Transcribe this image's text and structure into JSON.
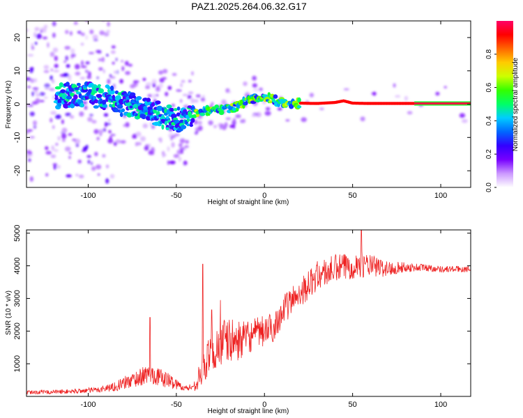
{
  "title": "PAZ1.2025.264.06.32.G17",
  "colors": {
    "snr_line": "#ee2222",
    "axis": "#000000",
    "colorbar": [
      "#ffffff",
      "#cc99ff",
      "#7700ff",
      "#3300ff",
      "#0066ff",
      "#00ccff",
      "#00ff66",
      "#33ff00",
      "#ccff00",
      "#ffcc00",
      "#ff6600",
      "#ff0000",
      "#ff0066"
    ]
  },
  "chart_data": [
    {
      "type": "heatmap",
      "name": "spectrogram",
      "xlabel": "Height of straight line (km)",
      "ylabel": "Frequency (Hz)",
      "xlim": [
        -135,
        117
      ],
      "ylim": [
        -25,
        25
      ],
      "xticks": [
        -100,
        -50,
        0,
        50,
        100
      ],
      "yticks": [
        20,
        10,
        0,
        -10,
        -20
      ],
      "xtick_labels": [
        "-100",
        "-50",
        "0",
        "50",
        "100"
      ],
      "ytick_labels": [
        "20",
        "10",
        "0",
        "-10",
        "-20"
      ],
      "ridge": {
        "x": [
          -115,
          -100,
          -90,
          -80,
          -70,
          -60,
          -50,
          -40,
          -30,
          -20,
          -10,
          -5,
          0,
          5,
          10,
          20,
          30,
          40,
          45,
          50,
          60,
          85,
          117
        ],
        "y": [
          2.5,
          3,
          2,
          0,
          -1,
          -3,
          -5,
          -3,
          -2,
          -1.5,
          1,
          2,
          2,
          1.5,
          0.5,
          0.3,
          0.2,
          0.5,
          1,
          0.3,
          0.2,
          0.2,
          0.2
        ]
      },
      "colorbar": {
        "label": "Normalized spectral amplitude",
        "range": [
          0,
          1
        ],
        "ticks": [
          0.0,
          0.2,
          0.4,
          0.6,
          0.8
        ],
        "tick_labels": [
          "0.0",
          "0.2",
          "0.4",
          "0.6",
          "0.8"
        ]
      }
    },
    {
      "type": "line",
      "name": "snr",
      "xlabel": "Height of straight line (km)",
      "ylabel": "SNR (10 * v/v)",
      "xlim": [
        -135,
        117
      ],
      "ylim": [
        0,
        5100
      ],
      "xticks": [
        -100,
        -50,
        0,
        50,
        100
      ],
      "yticks": [
        1000,
        2000,
        3000,
        4000,
        5000
      ],
      "xtick_labels": [
        "-100",
        "-50",
        "0",
        "50",
        "100"
      ],
      "ytick_labels": [
        "1000",
        "2000",
        "3000",
        "4000",
        "5000"
      ],
      "series": [
        {
          "name": "SNR",
          "envelope_x": [
            -135,
            -110,
            -95,
            -85,
            -75,
            -65,
            -55,
            -45,
            -40,
            -35,
            -30,
            -25,
            -20,
            -15,
            -10,
            -5,
            0,
            5,
            10,
            15,
            20,
            25,
            30,
            35,
            40,
            45,
            50,
            55,
            60,
            65,
            70,
            75,
            80,
            90,
            100,
            117
          ],
          "envelope_mean": [
            120,
            150,
            200,
            300,
            500,
            700,
            500,
            250,
            300,
            800,
            1300,
            1600,
            1700,
            1700,
            1800,
            1900,
            2000,
            2100,
            2600,
            2900,
            3200,
            3400,
            3700,
            3800,
            3900,
            3950,
            4000,
            4050,
            4000,
            3950,
            3900,
            3950,
            3950,
            3950,
            3900,
            3900
          ],
          "envelope_noise": [
            60,
            70,
            90,
            140,
            250,
            300,
            250,
            80,
            150,
            500,
            700,
            800,
            700,
            600,
            500,
            500,
            500,
            450,
            450,
            450,
            450,
            450,
            450,
            450,
            450,
            450,
            400,
            400,
            350,
            300,
            250,
            200,
            150,
            120,
            100,
            100
          ],
          "peaks": [
            {
              "x": -65,
              "y": 2420
            },
            {
              "x": -35,
              "y": 4050
            },
            {
              "x": -30,
              "y": 2650
            },
            {
              "x": -25,
              "y": 2950
            },
            {
              "x": 55,
              "y": 5100
            }
          ]
        }
      ]
    }
  ]
}
